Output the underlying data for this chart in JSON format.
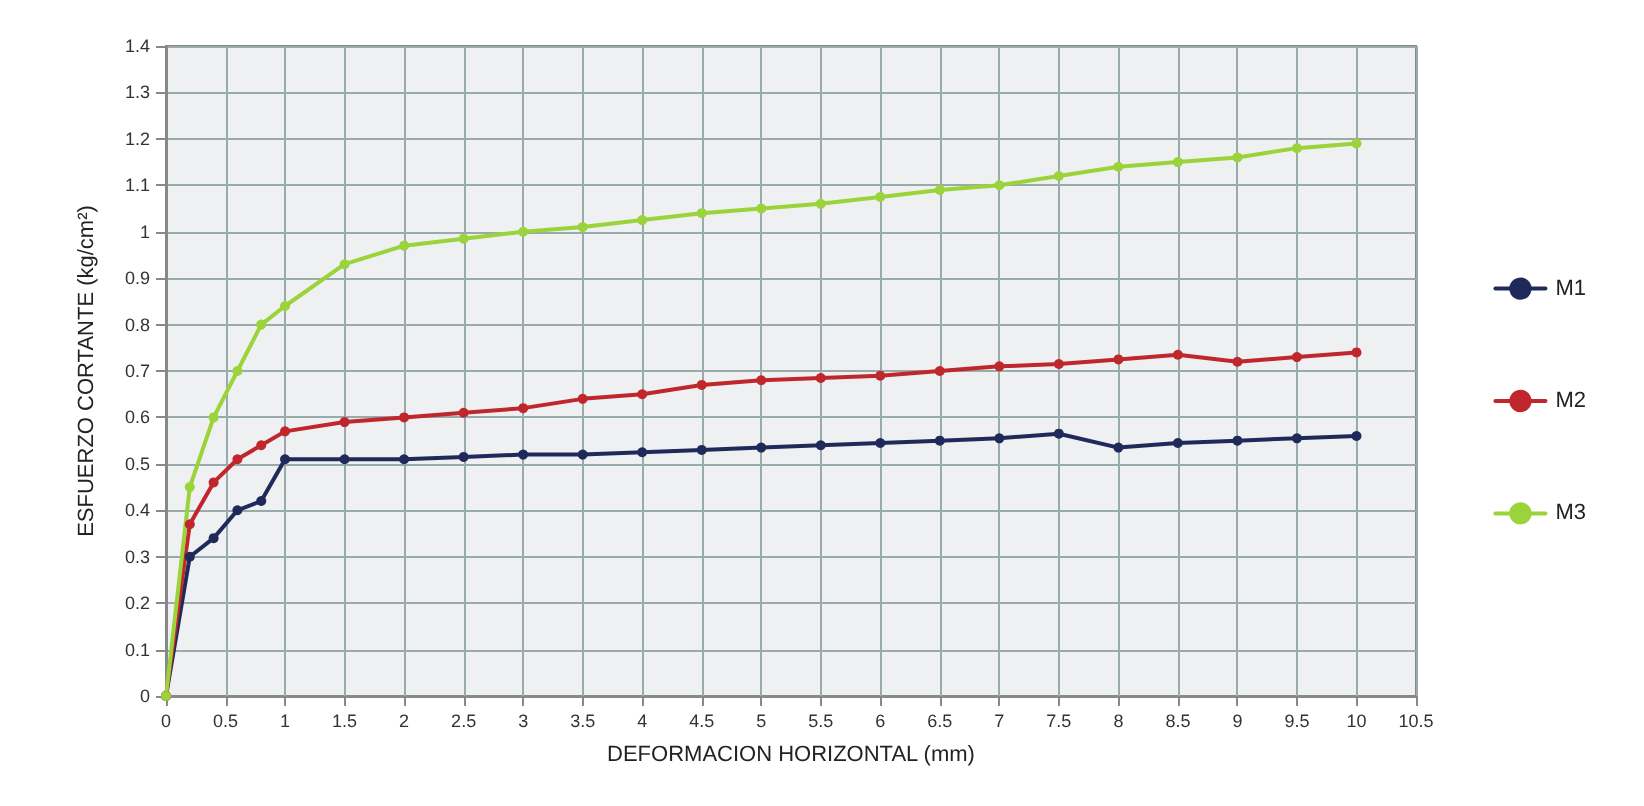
{
  "chart_data": {
    "type": "line",
    "xlabel": "DEFORMACION HORIZONTAL (mm)",
    "ylabel": "ESFUERZO CORTANTE (kg/cm²)",
    "x": [
      0,
      0.2,
      0.4,
      0.6,
      0.8,
      1,
      1.5,
      2,
      2.5,
      3,
      3.5,
      4,
      4.5,
      5,
      5.5,
      6,
      6.5,
      7,
      7.5,
      8,
      8.5,
      9,
      9.5,
      10
    ],
    "series": [
      {
        "name": "M1",
        "color": "#1f2a5a",
        "values": [
          0,
          0.3,
          0.34,
          0.4,
          0.42,
          0.51,
          0.51,
          0.51,
          0.515,
          0.52,
          0.52,
          0.525,
          0.53,
          0.535,
          0.54,
          0.545,
          0.55,
          0.555,
          0.565,
          0.535,
          0.545,
          0.55,
          0.555,
          0.56
        ]
      },
      {
        "name": "M2",
        "color": "#c0272d",
        "values": [
          0,
          0.37,
          0.46,
          0.51,
          0.54,
          0.57,
          0.59,
          0.6,
          0.61,
          0.62,
          0.64,
          0.65,
          0.67,
          0.68,
          0.685,
          0.69,
          0.7,
          0.71,
          0.715,
          0.725,
          0.735,
          0.72,
          0.73,
          0.74
        ]
      },
      {
        "name": "M3",
        "color": "#9bd33a",
        "values": [
          0,
          0.45,
          0.6,
          0.7,
          0.8,
          0.84,
          0.93,
          0.97,
          0.985,
          1,
          1.01,
          1.025,
          1.04,
          1.05,
          1.06,
          1.075,
          1.09,
          1.1,
          1.12,
          1.14,
          1.15,
          1.16,
          1.18,
          1.19
        ]
      }
    ],
    "xlim": [
      0,
      10.5
    ],
    "xticks": [
      0,
      0.5,
      1,
      1.5,
      2,
      2.5,
      3,
      3.5,
      4,
      4.5,
      5,
      5.5,
      6,
      6.5,
      7,
      7.5,
      8,
      8.5,
      9,
      9.5,
      10,
      10.5
    ],
    "ylim": [
      0,
      1.4
    ],
    "yticks": [
      0,
      0.1,
      0.2,
      0.3,
      0.4,
      0.5,
      0.6,
      0.7,
      0.8,
      0.9,
      1,
      1.1,
      1.2,
      1.3,
      1.4
    ],
    "grid": true,
    "legend": "right",
    "marker": "circle",
    "line_style": "solid"
  }
}
